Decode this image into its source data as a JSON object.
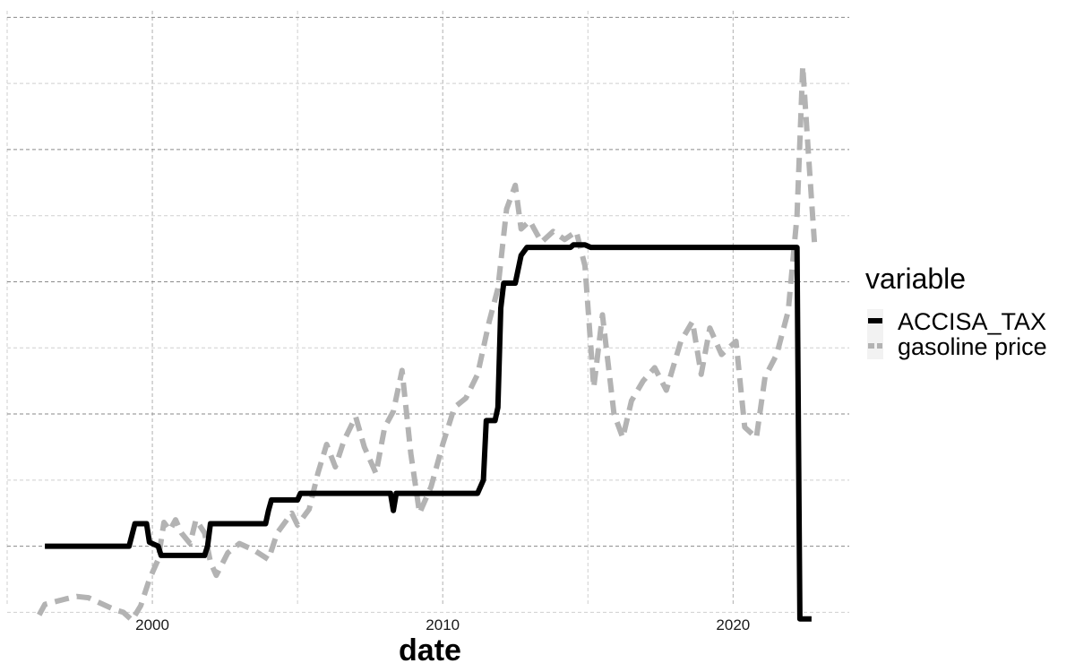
{
  "chart_data": {
    "type": "line",
    "title": "",
    "xlabel": "date",
    "ylabel": "",
    "x_ticks": [
      "2000",
      "2010",
      "2020"
    ],
    "x_tick_values": [
      2000,
      2010,
      2020
    ],
    "xlim": [
      1995,
      2024
    ],
    "ylim": [
      -0.45,
      4.05
    ],
    "y_tick_labels_shown": false,
    "grid": true,
    "grid_style": "dashed",
    "legend": {
      "title": "variable",
      "position": "right"
    },
    "series": [
      {
        "name": "ACCISA_TAX",
        "color": "#000000",
        "dash": "solid",
        "points": [
          [
            1996.3,
            0.0
          ],
          [
            1999.2,
            0.0
          ],
          [
            1999.4,
            0.17
          ],
          [
            1999.8,
            0.17
          ],
          [
            1999.9,
            0.03
          ],
          [
            2000.2,
            0.0
          ],
          [
            2000.3,
            -0.07
          ],
          [
            2001.8,
            -0.07
          ],
          [
            2001.9,
            0.0
          ],
          [
            2002.0,
            0.17
          ],
          [
            2003.9,
            0.17
          ],
          [
            2004.0,
            0.27
          ],
          [
            2004.1,
            0.35
          ],
          [
            2005.0,
            0.35
          ],
          [
            2005.1,
            0.4
          ],
          [
            2008.2,
            0.4
          ],
          [
            2008.3,
            0.27
          ],
          [
            2008.4,
            0.4
          ],
          [
            2011.2,
            0.4
          ],
          [
            2011.4,
            0.5
          ],
          [
            2011.5,
            0.95
          ],
          [
            2011.8,
            0.95
          ],
          [
            2011.9,
            1.05
          ],
          [
            2012.0,
            1.8
          ],
          [
            2012.1,
            1.99
          ],
          [
            2012.5,
            1.99
          ],
          [
            2012.7,
            2.2
          ],
          [
            2012.9,
            2.26
          ],
          [
            2014.4,
            2.26
          ],
          [
            2014.5,
            2.28
          ],
          [
            2014.9,
            2.28
          ],
          [
            2015.1,
            2.26
          ],
          [
            2022.2,
            2.26
          ],
          [
            2022.3,
            -0.55
          ],
          [
            2022.7,
            -0.55
          ]
        ]
      },
      {
        "name": "gasoline price",
        "color": "#b3b3b3",
        "dash": "dashed",
        "points": [
          [
            1996.1,
            -0.52
          ],
          [
            1996.3,
            -0.44
          ],
          [
            1997.0,
            -0.4
          ],
          [
            1997.4,
            -0.38
          ],
          [
            1997.8,
            -0.39
          ],
          [
            1998.3,
            -0.44
          ],
          [
            1998.7,
            -0.48
          ],
          [
            1999.0,
            -0.5
          ],
          [
            1999.3,
            -0.56
          ],
          [
            1999.6,
            -0.45
          ],
          [
            1999.9,
            -0.25
          ],
          [
            2000.2,
            -0.1
          ],
          [
            2000.4,
            0.18
          ],
          [
            2000.6,
            0.12
          ],
          [
            2000.8,
            0.2
          ],
          [
            2001.0,
            0.1
          ],
          [
            2001.3,
            0.02
          ],
          [
            2001.5,
            0.2
          ],
          [
            2001.8,
            0.1
          ],
          [
            2002.0,
            -0.12
          ],
          [
            2002.2,
            -0.22
          ],
          [
            2002.6,
            -0.05
          ],
          [
            2003.0,
            0.02
          ],
          [
            2003.5,
            -0.03
          ],
          [
            2004.0,
            -0.1
          ],
          [
            2004.3,
            0.1
          ],
          [
            2004.8,
            0.25
          ],
          [
            2005.0,
            0.16
          ],
          [
            2005.4,
            0.28
          ],
          [
            2005.7,
            0.55
          ],
          [
            2006.0,
            0.77
          ],
          [
            2006.3,
            0.6
          ],
          [
            2006.6,
            0.8
          ],
          [
            2007.0,
            0.98
          ],
          [
            2007.3,
            0.75
          ],
          [
            2007.7,
            0.55
          ],
          [
            2008.0,
            0.9
          ],
          [
            2008.3,
            1.02
          ],
          [
            2008.6,
            1.33
          ],
          [
            2008.9,
            0.7
          ],
          [
            2009.2,
            0.25
          ],
          [
            2009.6,
            0.45
          ],
          [
            2010.0,
            0.77
          ],
          [
            2010.4,
            1.05
          ],
          [
            2010.8,
            1.12
          ],
          [
            2011.2,
            1.3
          ],
          [
            2011.6,
            1.7
          ],
          [
            2011.9,
            1.95
          ],
          [
            2012.2,
            2.55
          ],
          [
            2012.5,
            2.73
          ],
          [
            2012.7,
            2.4
          ],
          [
            2013.0,
            2.46
          ],
          [
            2013.4,
            2.3
          ],
          [
            2013.8,
            2.38
          ],
          [
            2014.2,
            2.32
          ],
          [
            2014.6,
            2.38
          ],
          [
            2014.9,
            2.12
          ],
          [
            2015.2,
            1.2
          ],
          [
            2015.5,
            1.75
          ],
          [
            2015.9,
            1.0
          ],
          [
            2016.2,
            0.82
          ],
          [
            2016.5,
            1.1
          ],
          [
            2016.9,
            1.25
          ],
          [
            2017.3,
            1.35
          ],
          [
            2017.7,
            1.18
          ],
          [
            2018.2,
            1.55
          ],
          [
            2018.6,
            1.7
          ],
          [
            2018.9,
            1.3
          ],
          [
            2019.2,
            1.65
          ],
          [
            2019.6,
            1.45
          ],
          [
            2020.1,
            1.55
          ],
          [
            2020.4,
            0.9
          ],
          [
            2020.8,
            0.82
          ],
          [
            2021.1,
            1.28
          ],
          [
            2021.5,
            1.45
          ],
          [
            2021.9,
            1.78
          ],
          [
            2022.2,
            2.5
          ],
          [
            2022.4,
            3.63
          ],
          [
            2022.6,
            2.95
          ],
          [
            2022.8,
            2.3
          ]
        ]
      }
    ]
  }
}
